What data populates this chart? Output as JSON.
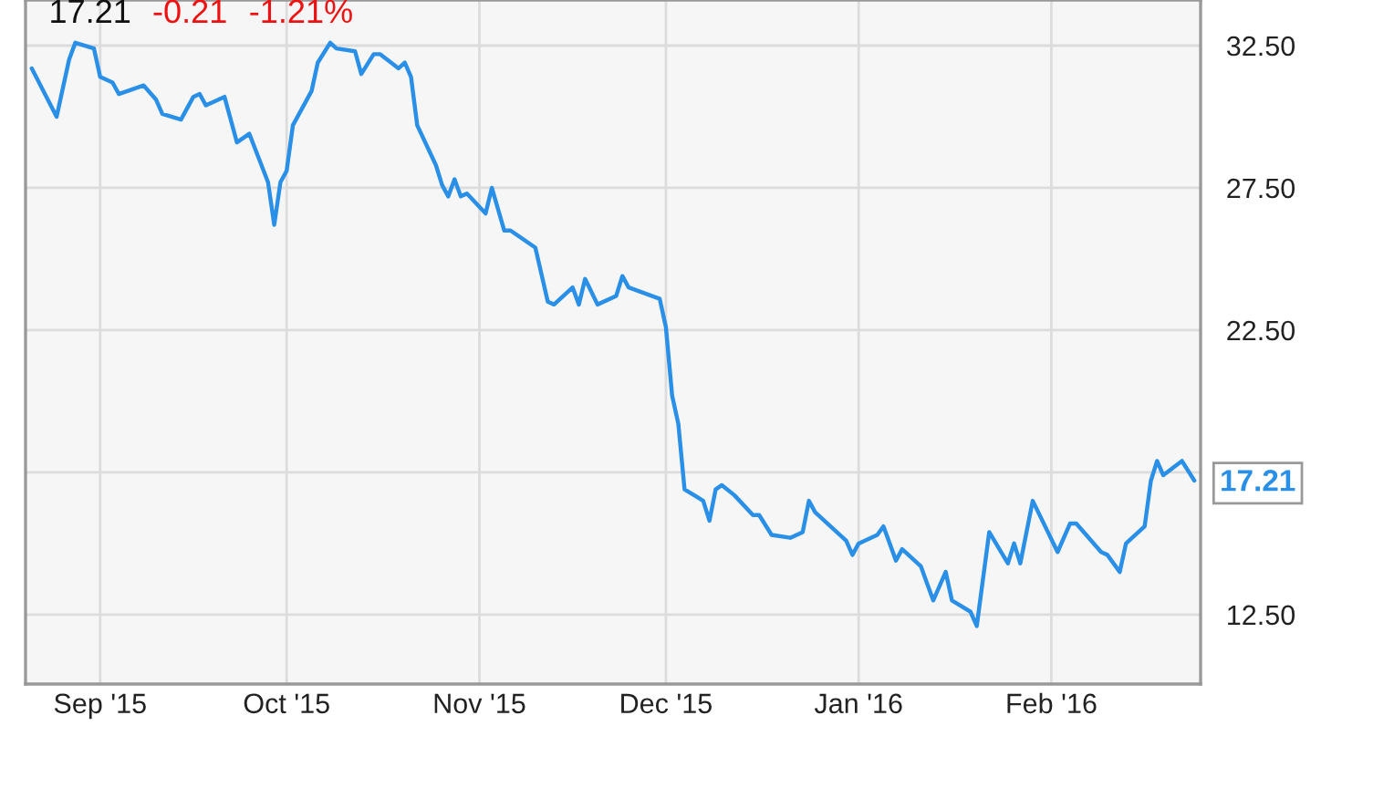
{
  "chart_data": {
    "type": "line",
    "x": [
      "2015-08-21",
      "2015-08-25",
      "2015-08-27",
      "2015-08-28",
      "2015-08-31",
      "2015-09-01",
      "2015-09-03",
      "2015-09-04",
      "2015-09-08",
      "2015-09-10",
      "2015-09-11",
      "2015-09-14",
      "2015-09-16",
      "2015-09-17",
      "2015-09-18",
      "2015-09-21",
      "2015-09-23",
      "2015-09-25",
      "2015-09-28",
      "2015-09-29",
      "2015-09-30",
      "2015-10-01",
      "2015-10-02",
      "2015-10-05",
      "2015-10-06",
      "2015-10-08",
      "2015-10-09",
      "2015-10-12",
      "2015-10-13",
      "2015-10-15",
      "2015-10-16",
      "2015-10-19",
      "2015-10-20",
      "2015-10-21",
      "2015-10-22",
      "2015-10-25",
      "2015-10-26",
      "2015-10-27",
      "2015-10-28",
      "2015-10-29",
      "2015-10-30",
      "2015-11-02",
      "2015-11-03",
      "2015-11-05",
      "2015-11-06",
      "2015-11-10",
      "2015-11-12",
      "2015-11-13",
      "2015-11-16",
      "2015-11-17",
      "2015-11-18",
      "2015-11-20",
      "2015-11-23",
      "2015-11-24",
      "2015-11-25",
      "2015-11-30",
      "2015-12-01",
      "2015-12-02",
      "2015-12-03",
      "2015-12-04",
      "2015-12-07",
      "2015-12-08",
      "2015-12-09",
      "2015-12-10",
      "2015-12-12",
      "2015-12-15",
      "2015-12-16",
      "2015-12-18",
      "2015-12-21",
      "2015-12-23",
      "2015-12-24",
      "2015-12-25",
      "2015-12-30",
      "2015-12-31",
      "2016-01-01",
      "2016-01-04",
      "2016-01-05",
      "2016-01-07",
      "2016-01-08",
      "2016-01-11",
      "2016-01-13",
      "2016-01-15",
      "2016-01-16",
      "2016-01-19",
      "2016-01-20",
      "2016-01-22",
      "2016-01-25",
      "2016-01-26",
      "2016-01-27",
      "2016-01-29",
      "2016-02-02",
      "2016-02-04",
      "2016-02-05",
      "2016-02-09",
      "2016-02-10",
      "2016-02-12",
      "2016-02-13",
      "2016-02-16",
      "2016-02-17",
      "2016-02-18",
      "2016-02-19",
      "2016-02-22",
      "2016-02-24"
    ],
    "series": [
      {
        "color": "#2a8fe6",
        "values": [
          31.7,
          30.0,
          32.0,
          32.6,
          32.4,
          31.4,
          31.2,
          30.8,
          31.1,
          30.6,
          30.1,
          29.9,
          30.7,
          30.8,
          30.4,
          30.7,
          29.1,
          29.4,
          27.7,
          26.2,
          27.7,
          28.1,
          29.7,
          30.9,
          31.9,
          32.6,
          32.4,
          32.3,
          31.5,
          32.2,
          32.2,
          31.7,
          31.9,
          31.4,
          29.7,
          28.3,
          27.6,
          27.2,
          27.8,
          27.2,
          27.3,
          26.6,
          27.5,
          26.0,
          26.0,
          25.4,
          23.5,
          23.4,
          24.0,
          23.4,
          24.3,
          23.4,
          23.7,
          24.4,
          24.0,
          23.6,
          22.6,
          20.2,
          19.2,
          16.9,
          16.5,
          15.8,
          16.9,
          17.05,
          16.7,
          16.0,
          16.0,
          15.3,
          15.2,
          15.4,
          16.5,
          16.1,
          15.1,
          14.6,
          15.0,
          15.3,
          15.6,
          14.4,
          14.8,
          14.2,
          13.0,
          14.0,
          13.0,
          12.6,
          12.1,
          15.4,
          14.3,
          15.0,
          14.3,
          16.5,
          14.7,
          15.7,
          15.7,
          14.7,
          14.6,
          14.0,
          15.0,
          15.6,
          17.2,
          17.9,
          17.4,
          17.9,
          17.21
        ]
      }
    ],
    "xlim": [
      "2015-08-20",
      "2016-02-25"
    ],
    "xticks": [
      {
        "value": "2015-09-01",
        "label": "Sep '15"
      },
      {
        "value": "2015-10-01",
        "label": "Oct '15"
      },
      {
        "value": "2015-11-01",
        "label": "Nov '15"
      },
      {
        "value": "2015-12-01",
        "label": "Dec '15"
      },
      {
        "value": "2016-01-01",
        "label": "Jan '16"
      },
      {
        "value": "2016-02-01",
        "label": "Feb '16"
      }
    ],
    "ylim": [
      10.06,
      34.1
    ],
    "yticks": [
      {
        "value": 12.5,
        "label": "12.50"
      },
      {
        "value": 17.5,
        "label": null
      },
      {
        "value": 22.5,
        "label": "22.50"
      },
      {
        "value": 27.5,
        "label": "27.50"
      },
      {
        "value": 32.5,
        "label": "32.50"
      }
    ],
    "grid": true,
    "annotations": [
      "17.21",
      "-0.21",
      "-1.21%",
      {
        "text": "17.21",
        "x": "2016-02-24",
        "y": 17.21
      }
    ]
  }
}
